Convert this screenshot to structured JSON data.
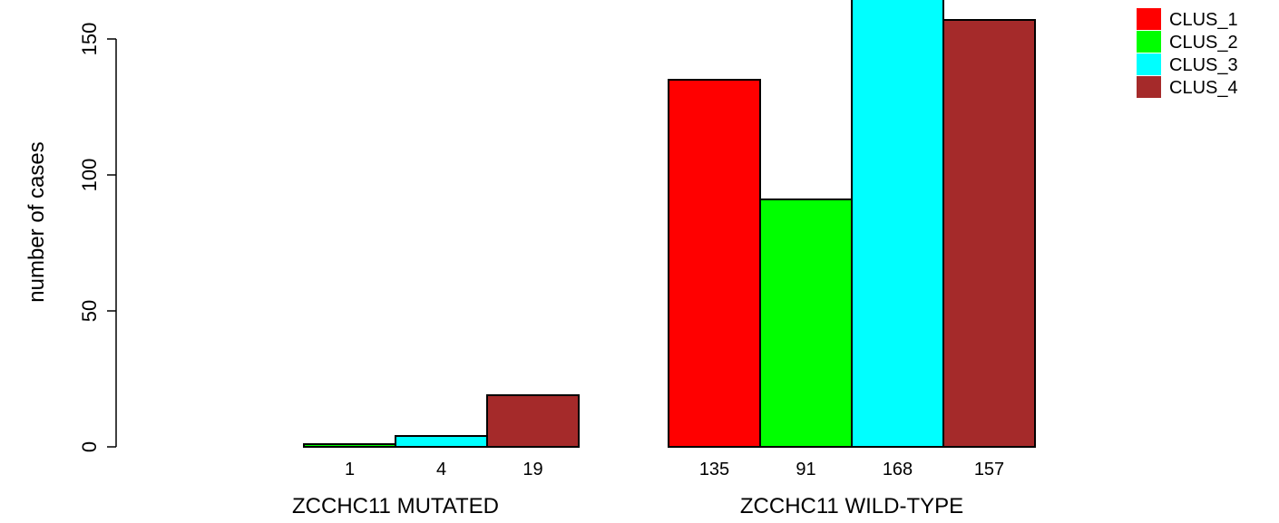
{
  "chart_data": {
    "type": "bar",
    "groups": [
      "ZCCHC11 MUTATED",
      "ZCCHC11 WILD-TYPE"
    ],
    "series": [
      {
        "name": "CLUS_1",
        "color": "#ff0000",
        "values": [
          0,
          135
        ],
        "labels": [
          "",
          "135"
        ]
      },
      {
        "name": "CLUS_2",
        "color": "#00ff00",
        "values": [
          1,
          91
        ],
        "labels": [
          "1",
          "91"
        ]
      },
      {
        "name": "CLUS_3",
        "color": "#00ffff",
        "values": [
          4,
          168
        ],
        "labels": [
          "4",
          "168"
        ]
      },
      {
        "name": "CLUS_4",
        "color": "#a52a2a",
        "values": [
          19,
          157
        ],
        "labels": [
          "19",
          "157"
        ]
      }
    ],
    "ylabel": "number of cases",
    "xlabel": "",
    "yticks": [
      0,
      50,
      100,
      150
    ],
    "ylim": [
      0,
      168
    ],
    "legend_position": "top-right",
    "grid": false
  }
}
